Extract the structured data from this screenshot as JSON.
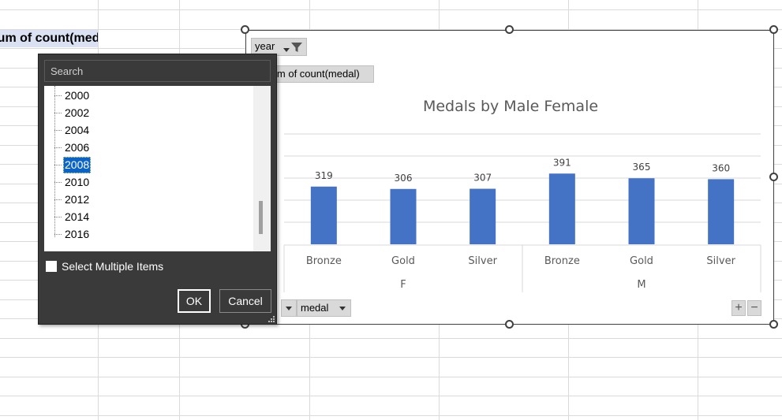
{
  "sheet": {
    "pivot_header": "Sum of count(medal)"
  },
  "chart": {
    "title": "Medals by Male Female",
    "year_field": "year",
    "value_field": "Sum of count(medal)",
    "medal_field": "medal",
    "plus_label": "+",
    "minus_label": "−",
    "bar_color": "#4472c4"
  },
  "chart_data": {
    "type": "bar",
    "title": "Medals by Male Female",
    "categories": [
      "Bronze",
      "Gold",
      "Silver",
      "Bronze",
      "Gold",
      "Silver"
    ],
    "groups": [
      {
        "name": "F",
        "categories": [
          "Bronze",
          "Gold",
          "Silver"
        ],
        "values": [
          319,
          306,
          307
        ]
      },
      {
        "name": "M",
        "categories": [
          "Bronze",
          "Gold",
          "Silver"
        ],
        "values": [
          391,
          365,
          360
        ]
      }
    ],
    "values": [
      319,
      306,
      307,
      391,
      365,
      360
    ],
    "ylim": [
      0,
      450
    ],
    "grid": true,
    "legend": "none",
    "data_labels": true
  },
  "filter_popup": {
    "search_placeholder": "Search",
    "years": [
      "2000",
      "2002",
      "2004",
      "2006",
      "2008",
      "2010",
      "2012",
      "2014",
      "2016"
    ],
    "selected_year": "2008",
    "multi_select_label": "Select Multiple Items",
    "ok_label": "OK",
    "cancel_label": "Cancel"
  }
}
